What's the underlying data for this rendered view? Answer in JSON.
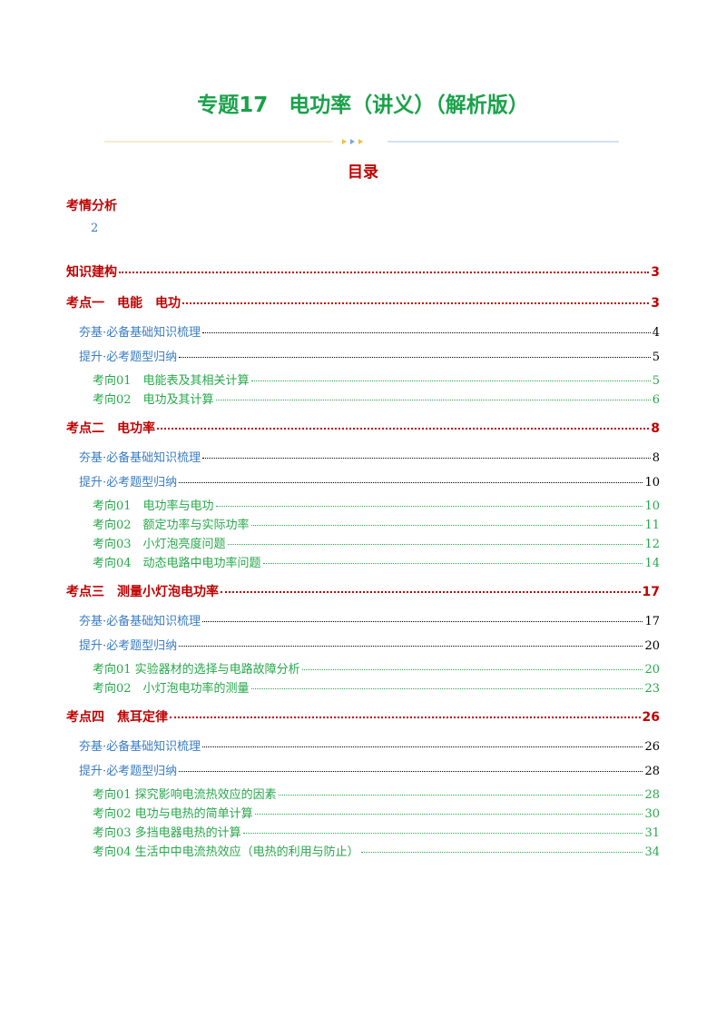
{
  "header": {
    "title": "专题17　电功率（讲义）（解析版）"
  },
  "toc": {
    "heading": "目录",
    "analysis": {
      "text": "考情分析",
      "page": "2"
    },
    "knowledge": {
      "text": "知识建构",
      "page": "3"
    },
    "sections": [
      {
        "text": "考点一　电能　电功",
        "page": "3",
        "items": [
          {
            "text": "夯基·必备基础知识梳理",
            "page": "4",
            "topics": []
          },
          {
            "text": "提升·必考题型归纳",
            "page": "5",
            "topics": [
              {
                "text": "考向01　电能表及其相关计算",
                "page": "5"
              },
              {
                "text": "考向02　电功及其计算",
                "page": "6"
              }
            ]
          }
        ]
      },
      {
        "text": "考点二　电功率",
        "page": "8",
        "items": [
          {
            "text": "夯基·必备基础知识梳理",
            "page": "8",
            "topics": []
          },
          {
            "text": "提升·必考题型归纳",
            "page": "10",
            "topics": [
              {
                "text": "考向01　电功率与电功",
                "page": "10"
              },
              {
                "text": "考向02　额定功率与实际功率",
                "page": "11"
              },
              {
                "text": "考向03　小灯泡亮度问题",
                "page": "12"
              },
              {
                "text": "考向04　动态电路中电功率问题",
                "page": "14"
              }
            ]
          }
        ]
      },
      {
        "text": "考点三　测量小灯泡电功率",
        "page": "17",
        "items": [
          {
            "text": "夯基·必备基础知识梳理",
            "page": "17",
            "topics": []
          },
          {
            "text": "提升·必考题型归纳",
            "page": "20",
            "topics": [
              {
                "text": "考向01 实验器材的选择与电路故障分析",
                "page": "20"
              },
              {
                "text": "考向02　小灯泡电功率的测量",
                "page": "23"
              }
            ]
          }
        ]
      },
      {
        "text": "考点四　焦耳定律",
        "page": "26",
        "items": [
          {
            "text": "夯基·必备基础知识梳理",
            "page": "26",
            "topics": []
          },
          {
            "text": "提升·必考题型归纳",
            "page": "28",
            "topics": [
              {
                "text": "考向01 探究影响电流热效应的因素",
                "page": "28"
              },
              {
                "text": "考向02 电功与电热的简单计算",
                "page": "30"
              },
              {
                "text": "考向03 多挡电器电热的计算",
                "page": "31"
              },
              {
                "text": "考向04 生活中中电流热效应（电热的利用与防止）",
                "page": "34"
              }
            ]
          }
        ]
      }
    ]
  }
}
